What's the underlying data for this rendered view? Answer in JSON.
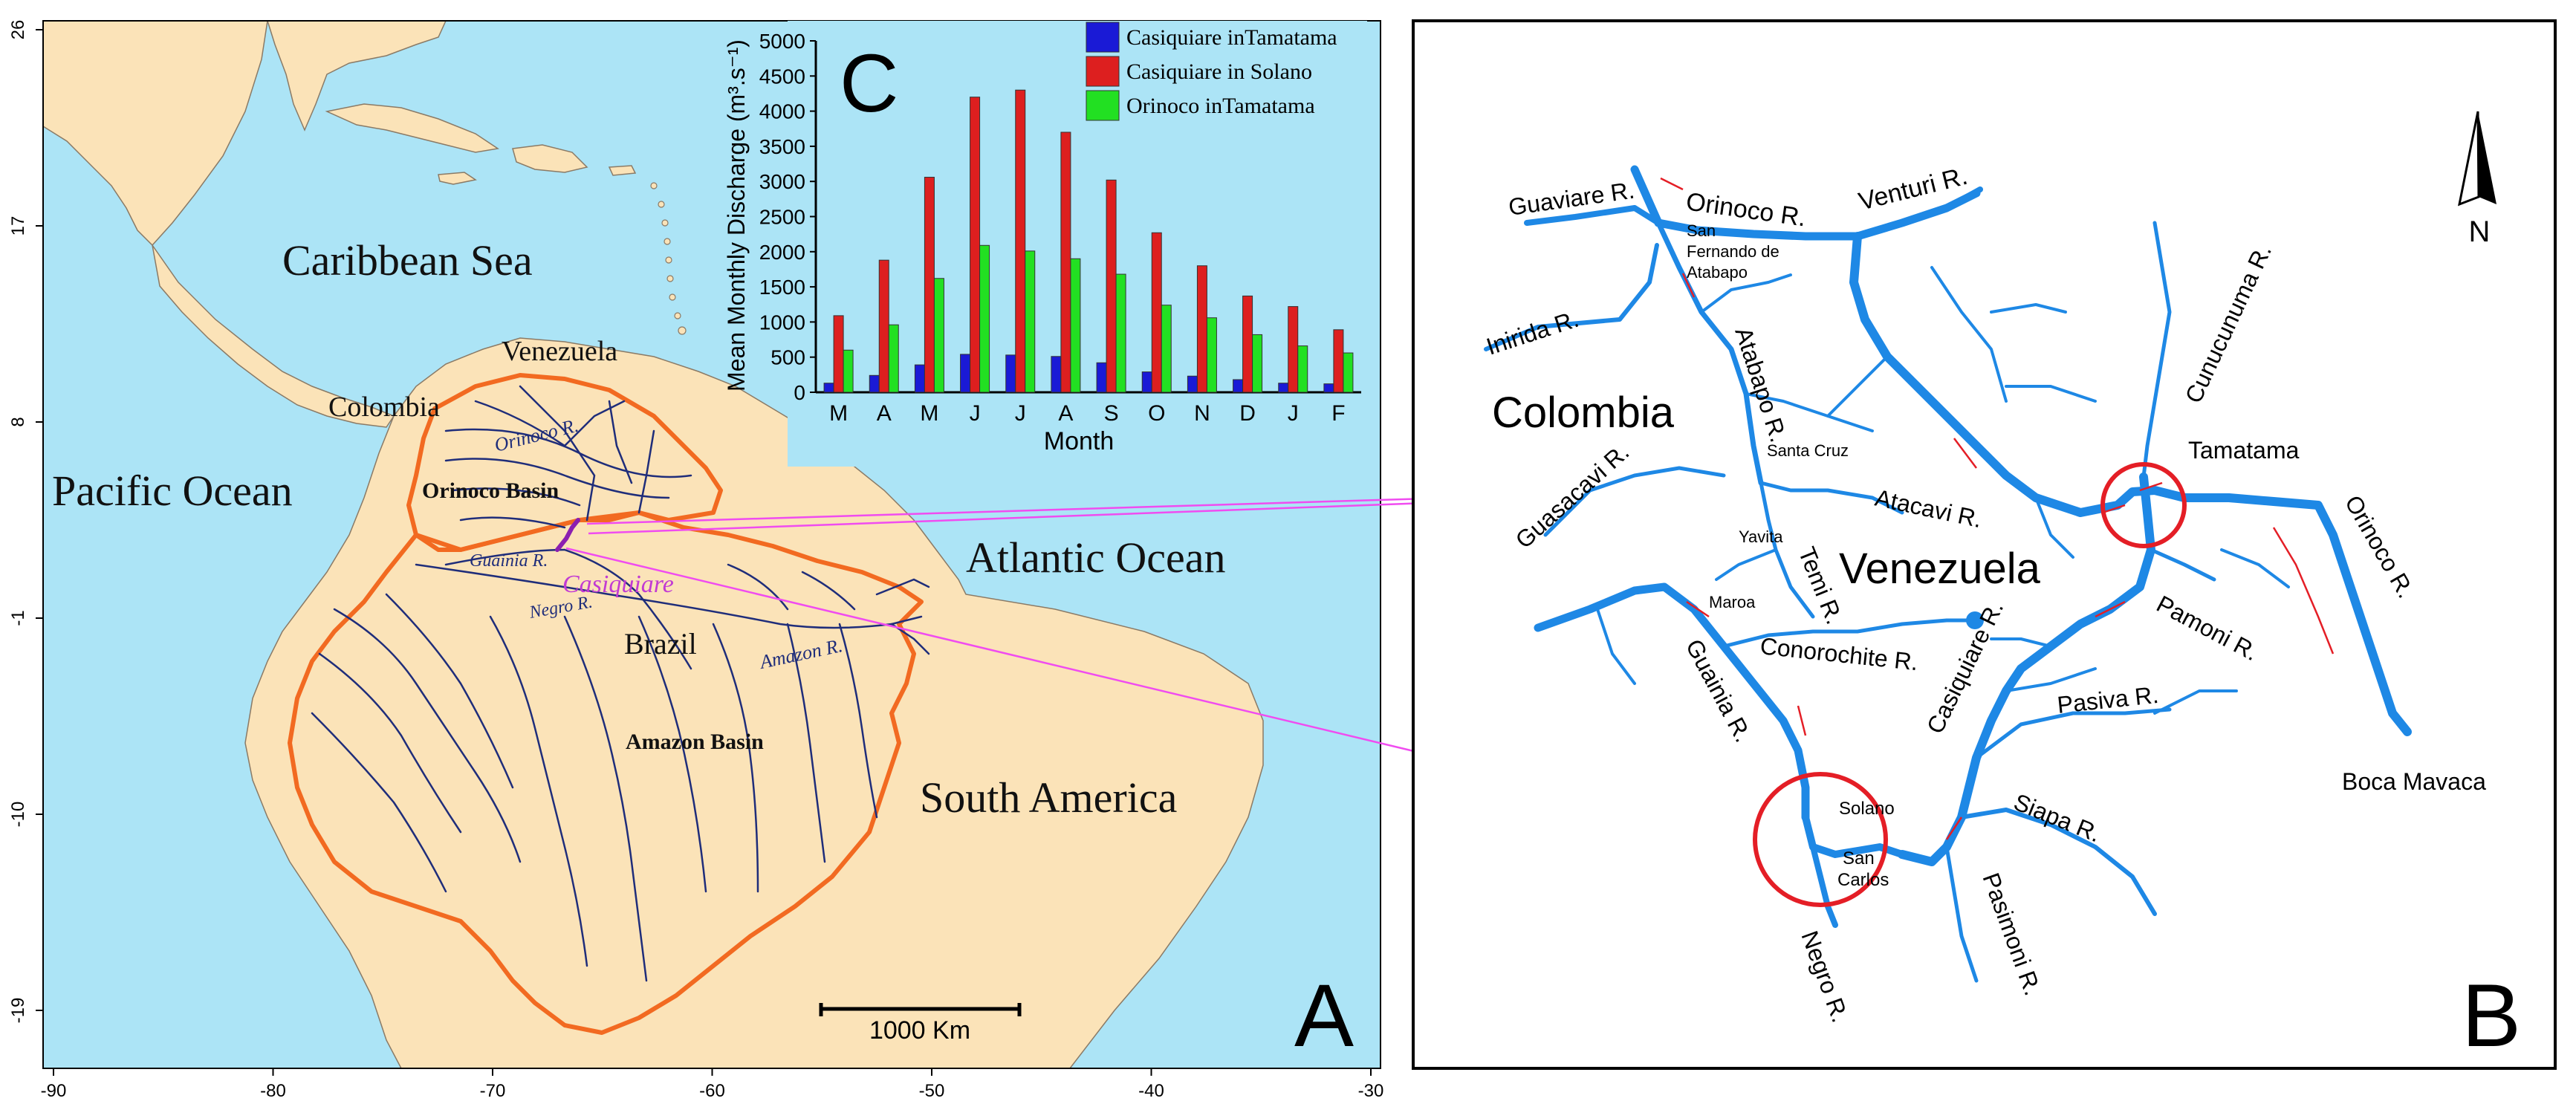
{
  "panel_a": {
    "letter": "A",
    "colors": {
      "ocean": "#ace4f6",
      "land": "#fbe3b8",
      "basin": "#f26a21",
      "river": "#1f2d7a",
      "casiquiare": "#c23bd3"
    },
    "x_ticks": [
      "-90",
      "-80",
      "-70",
      "-60",
      "-50",
      "-40",
      "-30"
    ],
    "y_ticks": [
      "26",
      "17",
      "8",
      "-1",
      "-10",
      "-19"
    ],
    "labels": {
      "caribbean": "Caribbean Sea",
      "pacific": "Pacific Ocean",
      "atlantic": "Atlantic Ocean",
      "south_america": "South America",
      "venezuela": "Venezuela",
      "colombia": "Colombia",
      "brazil": "Brazil",
      "orinoco_basin": "Orinoco Basin",
      "amazon_basin": "Amazon Basin",
      "orinoco_r": "Orinoco R.",
      "guainia_r": "Guainia R.",
      "negro_r": "Negro R.",
      "amazon_r": "Amazon R.",
      "casiquiare": "Casiquiare"
    },
    "scale_bar": "1000 Km"
  },
  "panel_b": {
    "letter": "B",
    "north": "N",
    "river_color": "#1e88e5",
    "highlight_color": "#e41e26",
    "labels": {
      "colombia": "Colombia",
      "venezuela": "Venezuela",
      "guaviare": "Guaviare R.",
      "orinoco_top": "Orinoco R.",
      "venturi": "Venturi R.",
      "san_fernando_1": "San",
      "san_fernando_2": "Fernando de",
      "san_fernando_3": "Atabapo",
      "inirida": "Inirida R.",
      "atabapo": "Atabapo R.",
      "santa_cruz": "Santa Cruz",
      "guasacavi": "Guasacavi R.",
      "atacavi": "Atacavi R.",
      "yavita": "Yavita",
      "temi": "Temi R.",
      "maroa": "Maroa",
      "conorochite": "Conorochite R.",
      "guainia": "Guainia R.",
      "casiquiare": "Casiquiare R.",
      "pamoni": "Pamoni R.",
      "pasiva": "Pasiva R.",
      "siapa": "Siapa R.",
      "pasimoni": "Pasimoni R.",
      "negro": "Negro R.",
      "solano": "Solano",
      "san_carlos_1": "San",
      "san_carlos_2": "Carlos",
      "tamatama": "Tamatama",
      "cunucunuma": "Cunucunuma R.",
      "orinoco_right": "Orinoco R.",
      "boca_mavaca": "Boca Mavaca"
    }
  },
  "chart_data": {
    "type": "bar",
    "panel_letter": "C",
    "categories": [
      "M",
      "A",
      "M",
      "J",
      "J",
      "A",
      "S",
      "O",
      "N",
      "D",
      "J",
      "F"
    ],
    "xlabel": "Month",
    "ylabel": "Mean Monthly Discharge (m³.s⁻¹)",
    "ylim": [
      0,
      5000
    ],
    "yticks": [
      0,
      500,
      1000,
      1500,
      2000,
      2500,
      3000,
      3500,
      4000,
      4500,
      5000
    ],
    "legend_position": "top-right",
    "grid": false,
    "series": [
      {
        "name": "Casiquiare inTamatama",
        "color": "#1a1ad6",
        "values": [
          130,
          240,
          390,
          540,
          530,
          510,
          420,
          290,
          230,
          180,
          130,
          120
        ]
      },
      {
        "name": "Casiquiare in Solano",
        "color": "#dd1f1f",
        "values": [
          1090,
          1880,
          3060,
          4200,
          4300,
          3700,
          3020,
          2270,
          1800,
          1370,
          1220,
          890
        ]
      },
      {
        "name": "Orinoco inTamatama",
        "color": "#22e022",
        "values": [
          600,
          960,
          1620,
          2090,
          2010,
          1900,
          1680,
          1240,
          1060,
          820,
          660,
          560
        ]
      }
    ]
  }
}
